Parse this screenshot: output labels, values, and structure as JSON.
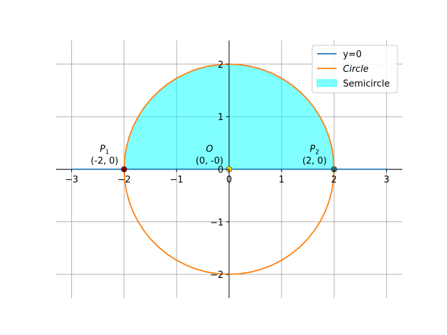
{
  "chart_data": {
    "type": "line",
    "title": "",
    "xlabel": "",
    "ylabel": "",
    "xlim": [
      -3.3,
      3.3
    ],
    "ylim": [
      -2.45,
      2.45
    ],
    "grid": true,
    "legend_position": "top-right",
    "x_ticks": [
      {
        "value": -3,
        "label": "−3"
      },
      {
        "value": -2,
        "label": "−2"
      },
      {
        "value": -1,
        "label": "−1"
      },
      {
        "value": 0,
        "label": "0"
      },
      {
        "value": 1,
        "label": "1"
      },
      {
        "value": 2,
        "label": "2"
      },
      {
        "value": 3,
        "label": "3"
      }
    ],
    "y_ticks": [
      {
        "value": -2,
        "label": "−2"
      },
      {
        "value": -1,
        "label": "−1"
      },
      {
        "value": 0,
        "label": "0"
      },
      {
        "value": 1,
        "label": "1"
      },
      {
        "value": 2,
        "label": "2"
      }
    ],
    "series": [
      {
        "name": "y=0",
        "kind": "line",
        "color": "#1f77b4",
        "x": [
          -3,
          3
        ],
        "y": [
          0,
          0
        ]
      },
      {
        "name": "Circle",
        "kind": "parametric-circle",
        "color": "#ff7f0e",
        "center": [
          0,
          0
        ],
        "radius": 2
      },
      {
        "name": "Semicircle",
        "kind": "fill",
        "color": "#00ffff",
        "opacity": 0.5,
        "center": [
          0,
          0
        ],
        "radius": 2,
        "half": "upper"
      }
    ],
    "points": [
      {
        "label_name": "P",
        "label_sub": "1",
        "coord_text": "(-2, 0)",
        "x": -2,
        "y": 0,
        "color": "#8b0000"
      },
      {
        "label_name": "O",
        "label_sub": "",
        "coord_text": "(0, -0)",
        "x": 0,
        "y": 0,
        "color": "#ffd700"
      },
      {
        "label_name": "P",
        "label_sub": "2",
        "coord_text": "(2, 0)",
        "x": 2,
        "y": 0,
        "color": "#2f6f6f"
      }
    ]
  }
}
